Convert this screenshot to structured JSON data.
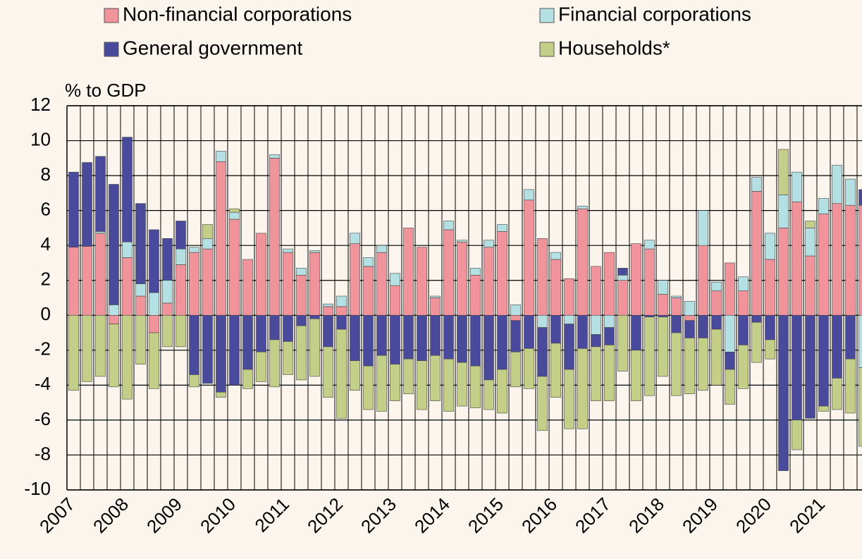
{
  "chart_data": {
    "type": "stacked_bar",
    "y_label": "% to GDP",
    "categories": [
      "2007",
      null,
      null,
      null,
      "2008",
      null,
      null,
      null,
      "2009",
      null,
      null,
      null,
      "2010",
      null,
      null,
      null,
      "2011",
      null,
      null,
      null,
      "2012",
      null,
      null,
      null,
      "2013",
      null,
      null,
      null,
      "2014",
      null,
      null,
      null,
      "2015",
      null,
      null,
      null,
      "2016",
      null,
      null,
      null,
      "2017",
      null,
      null,
      null,
      "2018",
      null,
      null,
      null,
      "2019",
      null,
      null,
      null,
      "2020",
      null,
      null,
      null,
      "2021",
      null,
      null,
      null
    ],
    "series": [
      {
        "name": "Non-financial corporations",
        "color": "#f0939a",
        "values": [
          3.9,
          3.95,
          4.7,
          -0.5,
          3.3,
          1.1,
          -1.0,
          0.7,
          2.9,
          3.6,
          3.8,
          8.8,
          5.5,
          3.2,
          4.7,
          9.0,
          3.6,
          2.3,
          3.6,
          0.5,
          0.5,
          4.1,
          2.8,
          3.6,
          1.7,
          5.0,
          3.9,
          1.0,
          4.9,
          4.2,
          2.3,
          3.9,
          4.8,
          -0.3,
          6.6,
          4.4,
          3.2,
          2.1,
          6.1,
          2.8,
          3.6,
          2.0,
          4.1,
          3.8,
          1.2,
          1.0,
          -0.3,
          4.0,
          1.4,
          3.0,
          1.4,
          7.1,
          3.2,
          5.0,
          6.5,
          3.4,
          5.8,
          6.4,
          6.3,
          6.3
        ]
      },
      {
        "name": "Financial corporations",
        "color": "#b4e0e4",
        "values": [
          0,
          0,
          0.1,
          0.6,
          0.9,
          0.7,
          1.3,
          1.3,
          0.9,
          0.3,
          0.6,
          0.6,
          0.4,
          0,
          0,
          0.2,
          0.2,
          0.4,
          0.1,
          0.15,
          0.6,
          0.6,
          0.5,
          0.4,
          0.7,
          0,
          0,
          0.1,
          0.5,
          0.1,
          0.4,
          0.4,
          0.4,
          0.6,
          0.6,
          -0.7,
          0.4,
          -0.5,
          0.15,
          -1.1,
          -0.7,
          0.3,
          0,
          0.5,
          0.8,
          0.1,
          0.8,
          2.0,
          0.5,
          -2.1,
          0.8,
          0.8,
          1.5,
          1.9,
          1.7,
          1.6,
          0.9,
          2.2,
          1.5,
          -3.0
        ]
      },
      {
        "name": "General government",
        "color": "#4a4a9c",
        "values": [
          4.3,
          4.8,
          4.3,
          6.9,
          6.0,
          4.6,
          3.6,
          2.4,
          1.6,
          -3.4,
          -3.9,
          -4.4,
          -4.0,
          -3.1,
          -2.1,
          -1.4,
          -1.5,
          -0.6,
          -0.2,
          -1.8,
          -0.8,
          -2.6,
          -2.9,
          -2.3,
          -2.8,
          -2.5,
          -2.6,
          -2.3,
          -2.5,
          -2.7,
          -2.9,
          -3.7,
          -3.1,
          -1.8,
          -1.9,
          -2.8,
          -1.6,
          -2.6,
          -1.9,
          -0.7,
          -1.0,
          0.4,
          -2.0,
          -0.1,
          -0.1,
          -1.0,
          -1.0,
          -1.3,
          -0.8,
          -1.0,
          -1.7,
          -0.4,
          -1.4,
          -8.9,
          -6.0,
          -5.9,
          -5.2,
          -3.6,
          -2.5,
          0.9
        ]
      },
      {
        "name": "Households*",
        "color": "#c3cf88",
        "values": [
          -4.3,
          -3.8,
          -3.5,
          -3.6,
          -4.8,
          -2.8,
          -3.2,
          -1.8,
          -1.8,
          -0.7,
          0.8,
          -0.3,
          0.2,
          -1.1,
          -1.7,
          -2.7,
          -1.9,
          -3.1,
          -3.3,
          -2.9,
          -5.1,
          -1.7,
          -2.5,
          -3.2,
          -2.1,
          -2.0,
          -2.8,
          -2.6,
          -3.0,
          -2.5,
          -2.4,
          -1.7,
          -2.5,
          -2.0,
          -2.3,
          -3.1,
          -3.1,
          -3.4,
          -4.6,
          -3.1,
          -3.2,
          -3.2,
          -2.9,
          -4.5,
          -3.4,
          -3.6,
          -3.2,
          -3.0,
          -3.2,
          -2.0,
          -2.5,
          -2.3,
          -1.1,
          2.6,
          -1.7,
          0.4,
          -0.3,
          -1.8,
          -3.1,
          -4.5
        ]
      }
    ],
    "ylim": [
      -10,
      12
    ],
    "yticks": [
      -10,
      -8,
      -6,
      -4,
      -2,
      0,
      2,
      4,
      6,
      8,
      10,
      12
    ],
    "grid": true
  }
}
